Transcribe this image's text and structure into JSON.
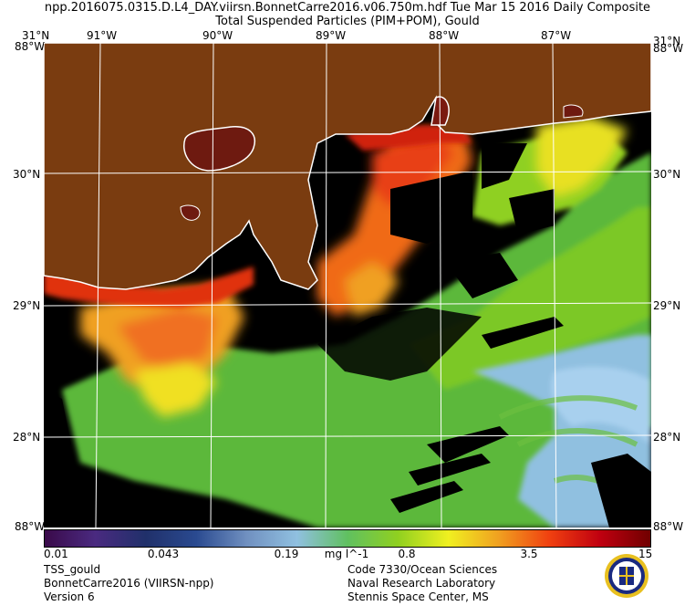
{
  "header": {
    "file_line": "npp.2016075.0315.D.L4_DAY.viirsn.BonnetCarre2016.v06.750m.hdf    Tue Mar 15 2016 Daily Composite",
    "product_line": "Total Suspended Particles (PIM+POM), Gould"
  },
  "map": {
    "longitude_labels": [
      "91°W",
      "90°W",
      "89°W",
      "88°W",
      "87°W"
    ],
    "latitude_labels": [
      "30°N",
      "29°N",
      "28°N"
    ],
    "corner_labels": {
      "top_left": "31°N",
      "top_right": "31°N",
      "left_top": "88°W",
      "right_top": "88°W",
      "left_bottom": "88°W",
      "right_bottom": "88°W"
    },
    "colors": {
      "land": "#7a3c10",
      "no_data": "#000000",
      "coastline": "#ffffff",
      "grid": "#ffffff"
    }
  },
  "colorbar": {
    "tick_labels": [
      "0.01",
      "0.043",
      "0.19",
      "0.8",
      "3.5",
      "15"
    ],
    "units": "mg l^-1",
    "stops": [
      "#3a0a4a",
      "#4a2a80",
      "#20306a",
      "#2a4a90",
      "#7090c0",
      "#90c0e0",
      "#60c060",
      "#90d020",
      "#f0f020",
      "#f0a020",
      "#f04010",
      "#c00010",
      "#700000"
    ]
  },
  "footer": {
    "left": [
      "TSS_gould",
      "BonnetCarre2016 (VIIRSN-npp)",
      "Version 6"
    ],
    "right": [
      "Code 7330/Ocean Sciences",
      "Naval Research Laboratory",
      "Stennis Space Center, MS"
    ]
  },
  "seal_icon": "navy-seal-icon"
}
